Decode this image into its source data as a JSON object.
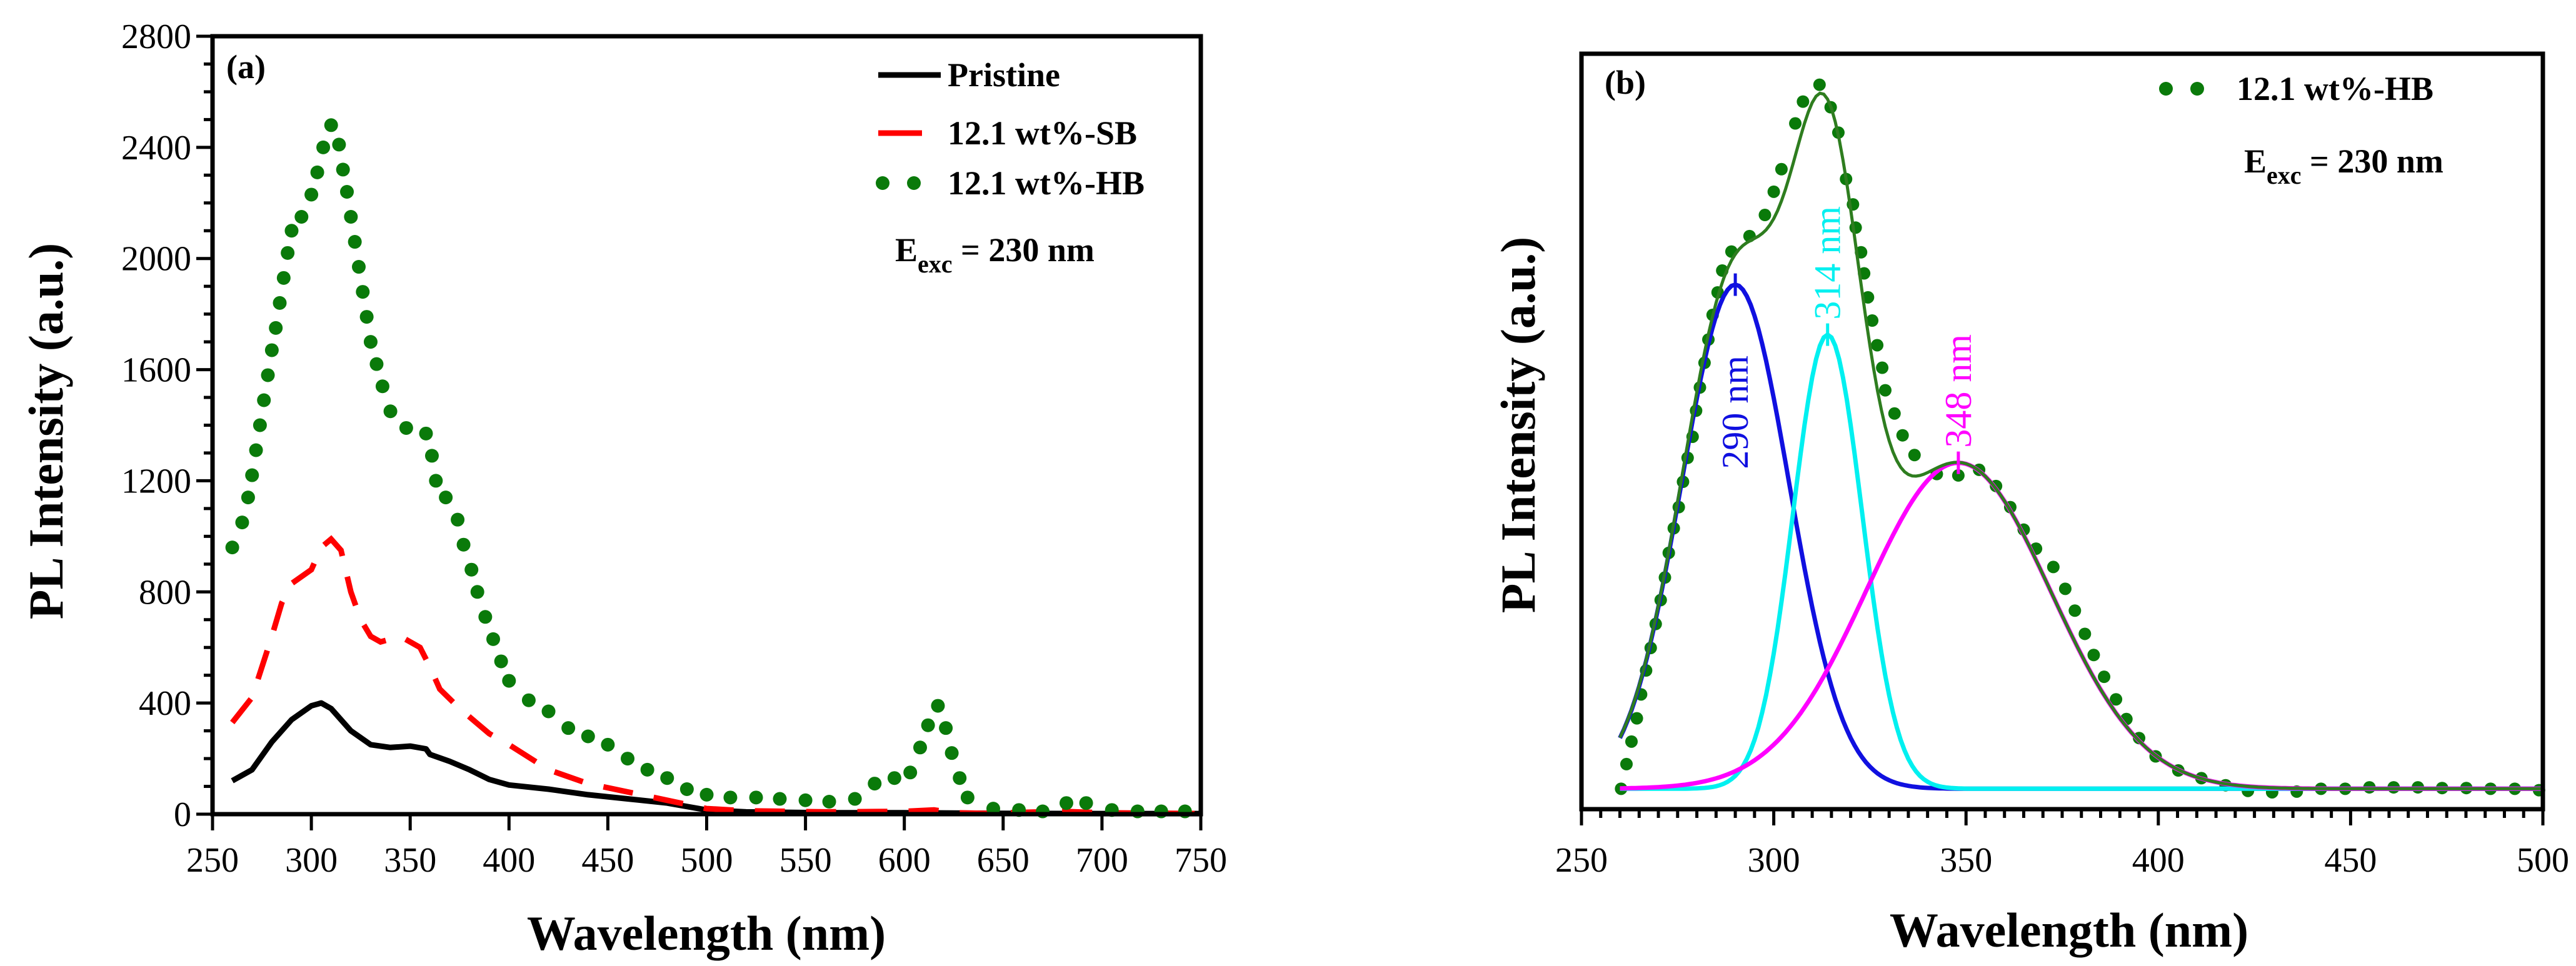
{
  "chart_data": [
    {
      "type": "line",
      "panel_label": "(a)",
      "xlabel": "Wavelength (nm)",
      "ylabel": "PL Intensity (a.u.)",
      "xlim": [
        250,
        750
      ],
      "ylim": [
        0,
        2800
      ],
      "xticks": [
        250,
        300,
        350,
        400,
        450,
        500,
        550,
        600,
        650,
        700,
        750
      ],
      "yticks": [
        0,
        400,
        800,
        1200,
        1600,
        2000,
        2400,
        2800
      ],
      "legend_position": "top-right",
      "annotation": {
        "main": "E",
        "sub": "exc",
        "rest": " = 230 nm"
      },
      "series": [
        {
          "name": "Pristine",
          "style": "solid",
          "color": "#000000",
          "x": [
            260,
            270,
            280,
            290,
            300,
            305,
            310,
            320,
            330,
            340,
            350,
            358,
            360,
            370,
            380,
            390,
            400,
            420,
            440,
            460,
            480,
            500,
            520,
            560,
            600,
            650,
            700,
            750
          ],
          "y": [
            120,
            160,
            260,
            340,
            390,
            400,
            380,
            300,
            250,
            240,
            245,
            235,
            215,
            190,
            160,
            125,
            105,
            90,
            70,
            55,
            40,
            15,
            8,
            5,
            5,
            3,
            2,
            2
          ]
        },
        {
          "name": "12.1 wt%-SB",
          "style": "dashed",
          "color": "#ff0000",
          "x": [
            260,
            270,
            280,
            285,
            290,
            300,
            305,
            310,
            315,
            320,
            325,
            330,
            335,
            345,
            355,
            360,
            365,
            375,
            390,
            400,
            420,
            440,
            460,
            480,
            500,
            520,
            560,
            600,
            615,
            625,
            640,
            680,
            700,
            750
          ],
          "y": [
            330,
            420,
            640,
            760,
            830,
            880,
            960,
            990,
            950,
            800,
            700,
            640,
            620,
            640,
            600,
            530,
            450,
            380,
            290,
            250,
            160,
            110,
            80,
            50,
            20,
            12,
            8,
            10,
            15,
            5,
            3,
            10,
            5,
            2
          ]
        },
        {
          "name": "12.1 wt%-HB",
          "style": "dotted",
          "color": "#0a7a0a",
          "x": [
            260,
            265,
            268,
            270,
            272,
            274,
            276,
            278,
            280,
            282,
            284,
            286,
            288,
            290,
            295,
            300,
            303,
            306,
            310,
            314,
            316,
            318,
            320,
            322,
            324,
            326,
            328,
            330,
            333,
            336,
            340,
            348,
            358,
            361,
            363,
            368,
            374,
            377,
            381,
            384,
            388,
            392,
            396,
            400,
            410,
            420,
            430,
            440,
            450,
            460,
            470,
            480,
            490,
            500,
            512,
            525,
            537,
            550,
            562,
            575,
            585,
            595,
            603,
            608,
            612,
            617,
            621,
            624,
            628,
            632,
            645,
            658,
            670,
            682,
            692,
            705,
            718,
            730,
            742
          ],
          "y": [
            960,
            1050,
            1140,
            1220,
            1310,
            1400,
            1490,
            1580,
            1670,
            1750,
            1840,
            1930,
            2020,
            2100,
            2150,
            2230,
            2310,
            2400,
            2480,
            2410,
            2320,
            2240,
            2150,
            2060,
            1970,
            1880,
            1790,
            1700,
            1620,
            1540,
            1450,
            1390,
            1370,
            1290,
            1200,
            1140,
            1060,
            970,
            880,
            800,
            710,
            630,
            550,
            480,
            410,
            370,
            310,
            280,
            250,
            200,
            160,
            130,
            90,
            70,
            60,
            60,
            55,
            50,
            45,
            55,
            110,
            130,
            150,
            240,
            320,
            390,
            310,
            220,
            130,
            60,
            20,
            15,
            10,
            40,
            40,
            15,
            10,
            10,
            10
          ]
        }
      ]
    },
    {
      "type": "line",
      "panel_label": "(b)",
      "xlabel": "Wavelength (nm)",
      "ylabel": "PL Intensity (a.u.)",
      "xlim": [
        250,
        500
      ],
      "ylim": [
        -0.029,
        1.044
      ],
      "y_units": "normalized (no tick labels shown)",
      "xticks": [
        250,
        300,
        350,
        400,
        450,
        500
      ],
      "legend_position": "top-right",
      "annotation": {
        "main": "E",
        "sub": "exc",
        "rest": " = 230 nm"
      },
      "data_series": {
        "name": "12.1 wt%-HB",
        "style": "dotted",
        "color": "#0a7a0a",
        "x": [
          260.3,
          261.7,
          263,
          264.4,
          265.5,
          266.8,
          268,
          269.3,
          270.6,
          271.7,
          272.7,
          274,
          275.3,
          276.4,
          277.6,
          278.9,
          279.8,
          280.8,
          282,
          283,
          284.1,
          285.4,
          286.6,
          289,
          293.7,
          297.7,
          300,
          302,
          305.6,
          307.6,
          311.9,
          314.8,
          316.8,
          318.8,
          320.6,
          321.3,
          322.7,
          323.5,
          324.5,
          325.6,
          326.9,
          328.2,
          329,
          331.4,
          333.5,
          336.6,
          342.4,
          348,
          353.4,
          357.8,
          361.5,
          365,
          368.2,
          372.7,
          375.8,
          378.3,
          380.9,
          383.2,
          385.9,
          389,
          391.7,
          395,
          399.3,
          405.2,
          411.2,
          417.5,
          423.3,
          429.6,
          436,
          442.3,
          448.6,
          454.9,
          461.2,
          467.5,
          473.8,
          480.1,
          486.4,
          492.7,
          499
        ],
        "y": [
          0,
          0.035,
          0.067,
          0.1,
          0.134,
          0.168,
          0.2,
          0.234,
          0.268,
          0.3,
          0.335,
          0.37,
          0.4,
          0.436,
          0.47,
          0.5,
          0.537,
          0.57,
          0.605,
          0.638,
          0.673,
          0.705,
          0.736,
          0.763,
          0.785,
          0.815,
          0.848,
          0.88,
          0.945,
          0.976,
          1.0,
          0.968,
          0.932,
          0.866,
          0.83,
          0.797,
          0.762,
          0.732,
          0.698,
          0.665,
          0.63,
          0.598,
          0.566,
          0.533,
          0.502,
          0.474,
          0.447,
          0.445,
          0.453,
          0.43,
          0.4,
          0.368,
          0.341,
          0.315,
          0.284,
          0.253,
          0.22,
          0.19,
          0.159,
          0.127,
          0.099,
          0.072,
          0.046,
          0.026,
          0.015,
          0.005,
          -0.003,
          -0.005,
          -0.004,
          0,
          0,
          0.002,
          0.002,
          0.002,
          0.001,
          0.001,
          0,
          0,
          -0.002
        ]
      },
      "fit_line_color": "#2e7d1f",
      "peaks": [
        {
          "label": "290 nm",
          "center": 290,
          "amplitude": 0.716,
          "sigma": 14,
          "color": "#1010e0"
        },
        {
          "label": "314 nm",
          "center": 314,
          "amplitude": 0.645,
          "sigma": 9,
          "color": "#00f0f0"
        },
        {
          "label": "348 nm",
          "center": 348,
          "amplitude": 0.463,
          "sigma": 24,
          "color": "#ff00ff"
        }
      ]
    }
  ]
}
